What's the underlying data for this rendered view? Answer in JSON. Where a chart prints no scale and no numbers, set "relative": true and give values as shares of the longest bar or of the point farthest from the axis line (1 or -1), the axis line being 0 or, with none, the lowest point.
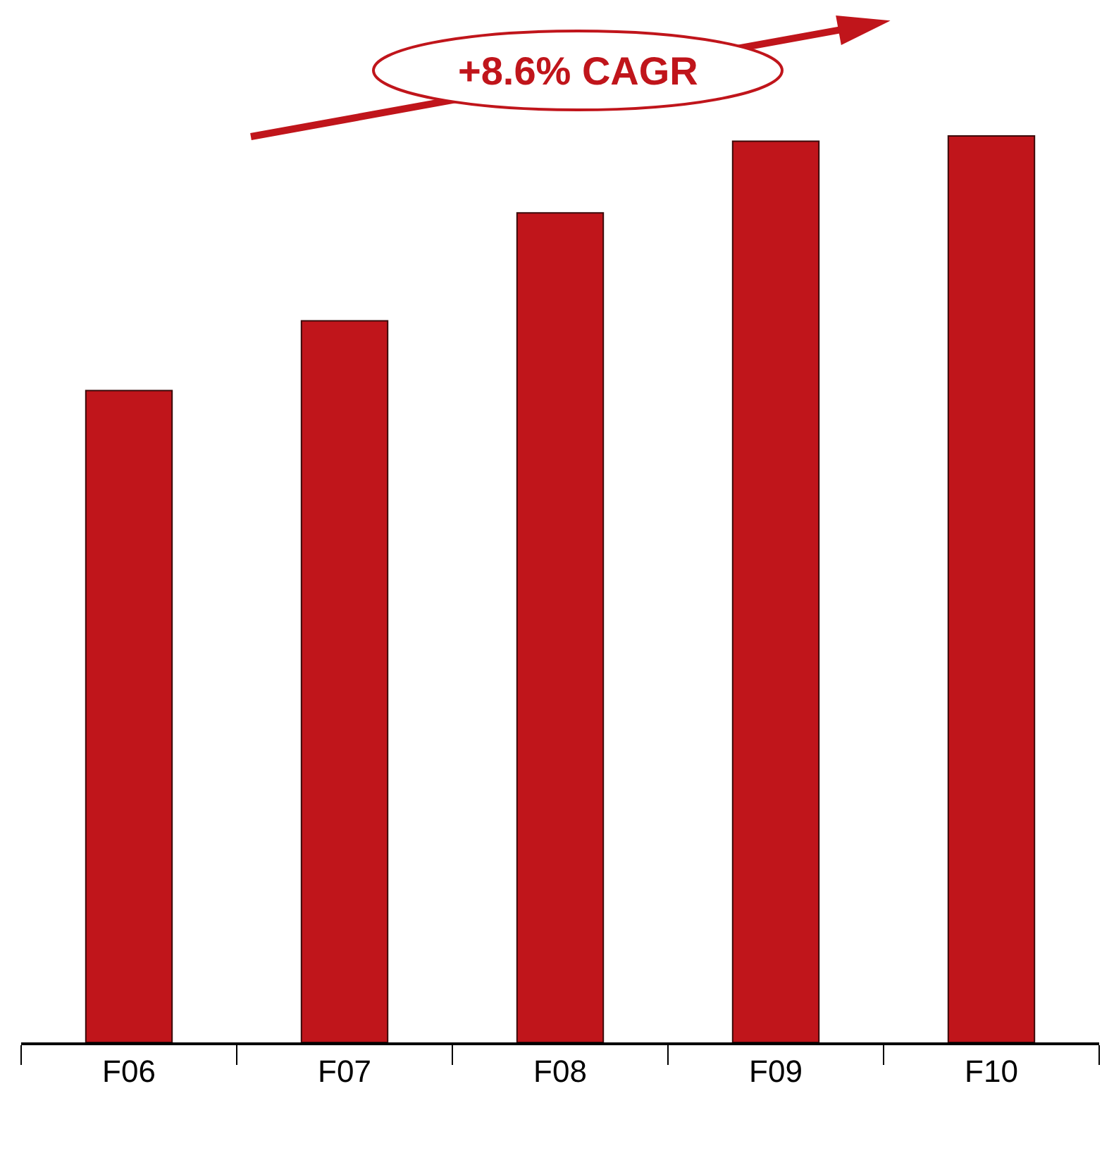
{
  "chart_data": {
    "type": "bar",
    "categories": [
      "F06",
      "F07",
      "F08",
      "F09",
      "F10"
    ],
    "values": [
      0.719,
      0.796,
      0.915,
      0.994,
      1
    ],
    "color": "#c0151b",
    "relative": true,
    "annotations": [
      "+8.6% CAGR"
    ]
  }
}
